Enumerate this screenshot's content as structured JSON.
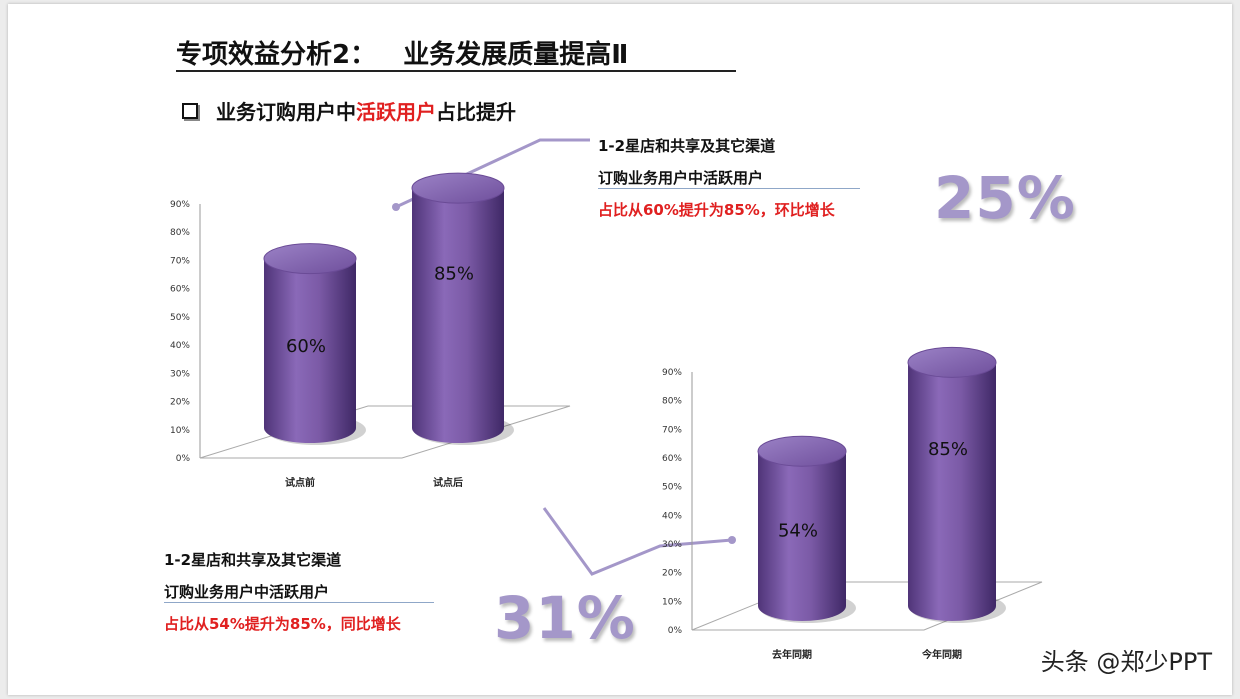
{
  "title": "专项效益分析2：   业务发展质量提高Ⅱ",
  "subtitle": {
    "prefix": "业务订购用户中",
    "highlight": "活跃用户",
    "suffix": "占比提升"
  },
  "annotation_1": {
    "line1": "1-2星店和共享及其它渠道",
    "line2": "订购业务用户中活跃用户",
    "line3": "占比从60%提升为85%，环比增长",
    "big_value": "25%"
  },
  "annotation_2": {
    "line1": "1-2星店和共享及其它渠道",
    "line2": "订购业务用户中活跃用户",
    "line3": "占比从54%提升为85%，同比增长",
    "big_value": "31%"
  },
  "watermark": "头条 @郑少PPT",
  "colors": {
    "bar": "#7b5aa6",
    "bar_dark": "#4f3478",
    "bar_top": "#8e72bb",
    "highlight_red": "#e02020",
    "big_number": "#a497c9"
  },
  "chart_data": [
    {
      "type": "bar",
      "categories": [
        "试点前",
        "试点后"
      ],
      "values": [
        60,
        85
      ],
      "data_labels": [
        "60%",
        "85%"
      ],
      "ylim": [
        0,
        90
      ],
      "yticks": [
        "0%",
        "10%",
        "20%",
        "30%",
        "40%",
        "50%",
        "60%",
        "70%",
        "80%",
        "90%"
      ]
    },
    {
      "type": "bar",
      "categories": [
        "去年同期",
        "今年同期"
      ],
      "values": [
        54,
        85
      ],
      "data_labels": [
        "54%",
        "85%"
      ],
      "ylim": [
        0,
        90
      ],
      "yticks": [
        "0%",
        "10%",
        "20%",
        "30%",
        "40%",
        "50%",
        "60%",
        "70%",
        "80%",
        "90%"
      ]
    }
  ]
}
